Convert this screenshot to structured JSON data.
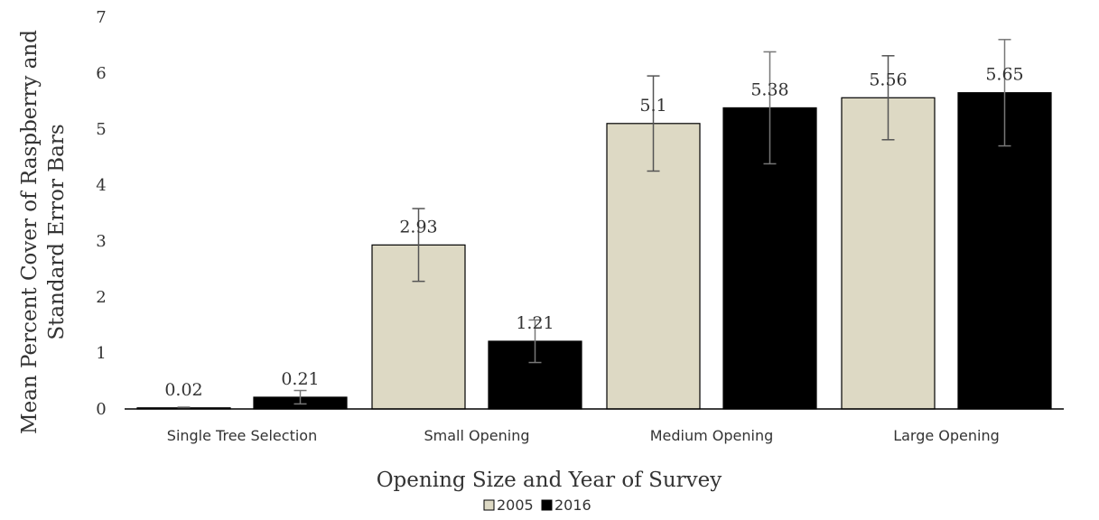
{
  "chart_data": {
    "type": "bar",
    "title": "",
    "xlabel": "Opening Size and Year of Survey",
    "ylabel_lines": [
      "Mean Percent Cover of Raspberry and",
      "Standard Error Bars"
    ],
    "categories": [
      "Single Tree Selection",
      "Small Opening",
      "Medium Opening",
      "Large Opening"
    ],
    "ylim": [
      0,
      7
    ],
    "yticks": [
      "0",
      "1",
      "2",
      "3",
      "4",
      "5",
      "6",
      "7"
    ],
    "grid": false,
    "legend_position": "bottom",
    "series": [
      {
        "name": "2005",
        "color": "#ddd9c4",
        "values": [
          0.02,
          2.93,
          5.1,
          5.56
        ],
        "value_labels": [
          "0.02",
          "2.93",
          "5.1",
          "5.56"
        ],
        "error": [
          0.01,
          0.65,
          0.85,
          0.75
        ]
      },
      {
        "name": "2016",
        "color": "#000000",
        "values": [
          0.21,
          1.21,
          5.38,
          5.65
        ],
        "value_labels": [
          "0.21",
          "1.21",
          "5.38",
          "5.65"
        ],
        "error": [
          0.12,
          0.38,
          1.0,
          0.95
        ]
      }
    ]
  }
}
